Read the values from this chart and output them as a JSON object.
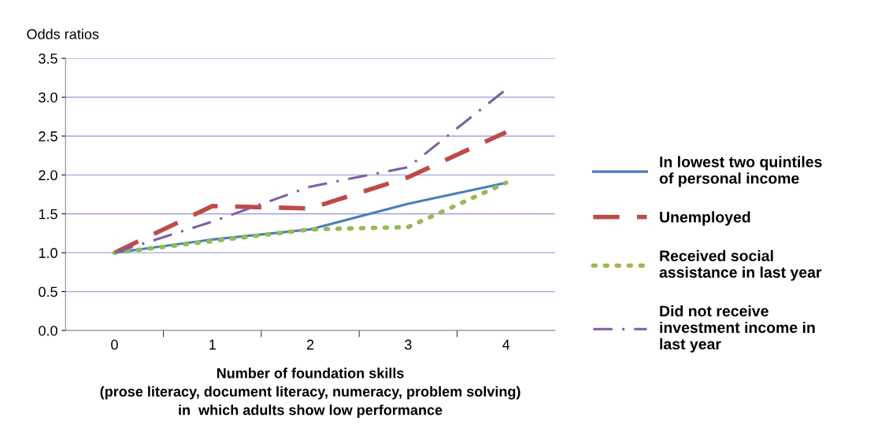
{
  "chart_data": {
    "type": "line",
    "ylabel": "Odds ratios",
    "xlabel": "Number of foundation skills\n(prose literacy, document literacy, numeracy, problem solving)\nin  which adults show low performance",
    "categories": [
      "0",
      "1",
      "2",
      "3",
      "4"
    ],
    "series": [
      {
        "name": "In lowest two quintiles\nof personal income",
        "color": "#4a7ebb",
        "line_style": "solid",
        "values": [
          1.0,
          1.17,
          1.3,
          1.63,
          1.9
        ]
      },
      {
        "name": "Unemployed",
        "color": "#be4b48",
        "line_style": "dashed",
        "values": [
          1.0,
          1.6,
          1.57,
          1.97,
          2.55
        ]
      },
      {
        "name": "Received social\nassistance in last year",
        "color": "#98b954",
        "line_style": "dotted",
        "values": [
          1.0,
          1.15,
          1.3,
          1.33,
          1.9
        ]
      },
      {
        "name": "Did not receive\ninvestment income in\nlast year",
        "color": "#7d5fa0",
        "line_style": "dashdot",
        "values": [
          1.0,
          1.4,
          1.85,
          2.1,
          3.1
        ]
      }
    ],
    "ylim": [
      0,
      3.5
    ],
    "yticks": [
      {
        "value": 0,
        "label": "0.0"
      },
      {
        "value": 0.5,
        "label": "0.5"
      },
      {
        "value": 1.0,
        "label": "1.0"
      },
      {
        "value": 1.5,
        "label": "1.5"
      },
      {
        "value": 2.0,
        "label": "2.0"
      },
      {
        "value": 2.5,
        "label": "2.5"
      },
      {
        "value": 3.0,
        "label": "3.0"
      },
      {
        "value": 3.5,
        "label": "3.5"
      }
    ],
    "grid": "y",
    "legend": "right",
    "marker": "none"
  }
}
